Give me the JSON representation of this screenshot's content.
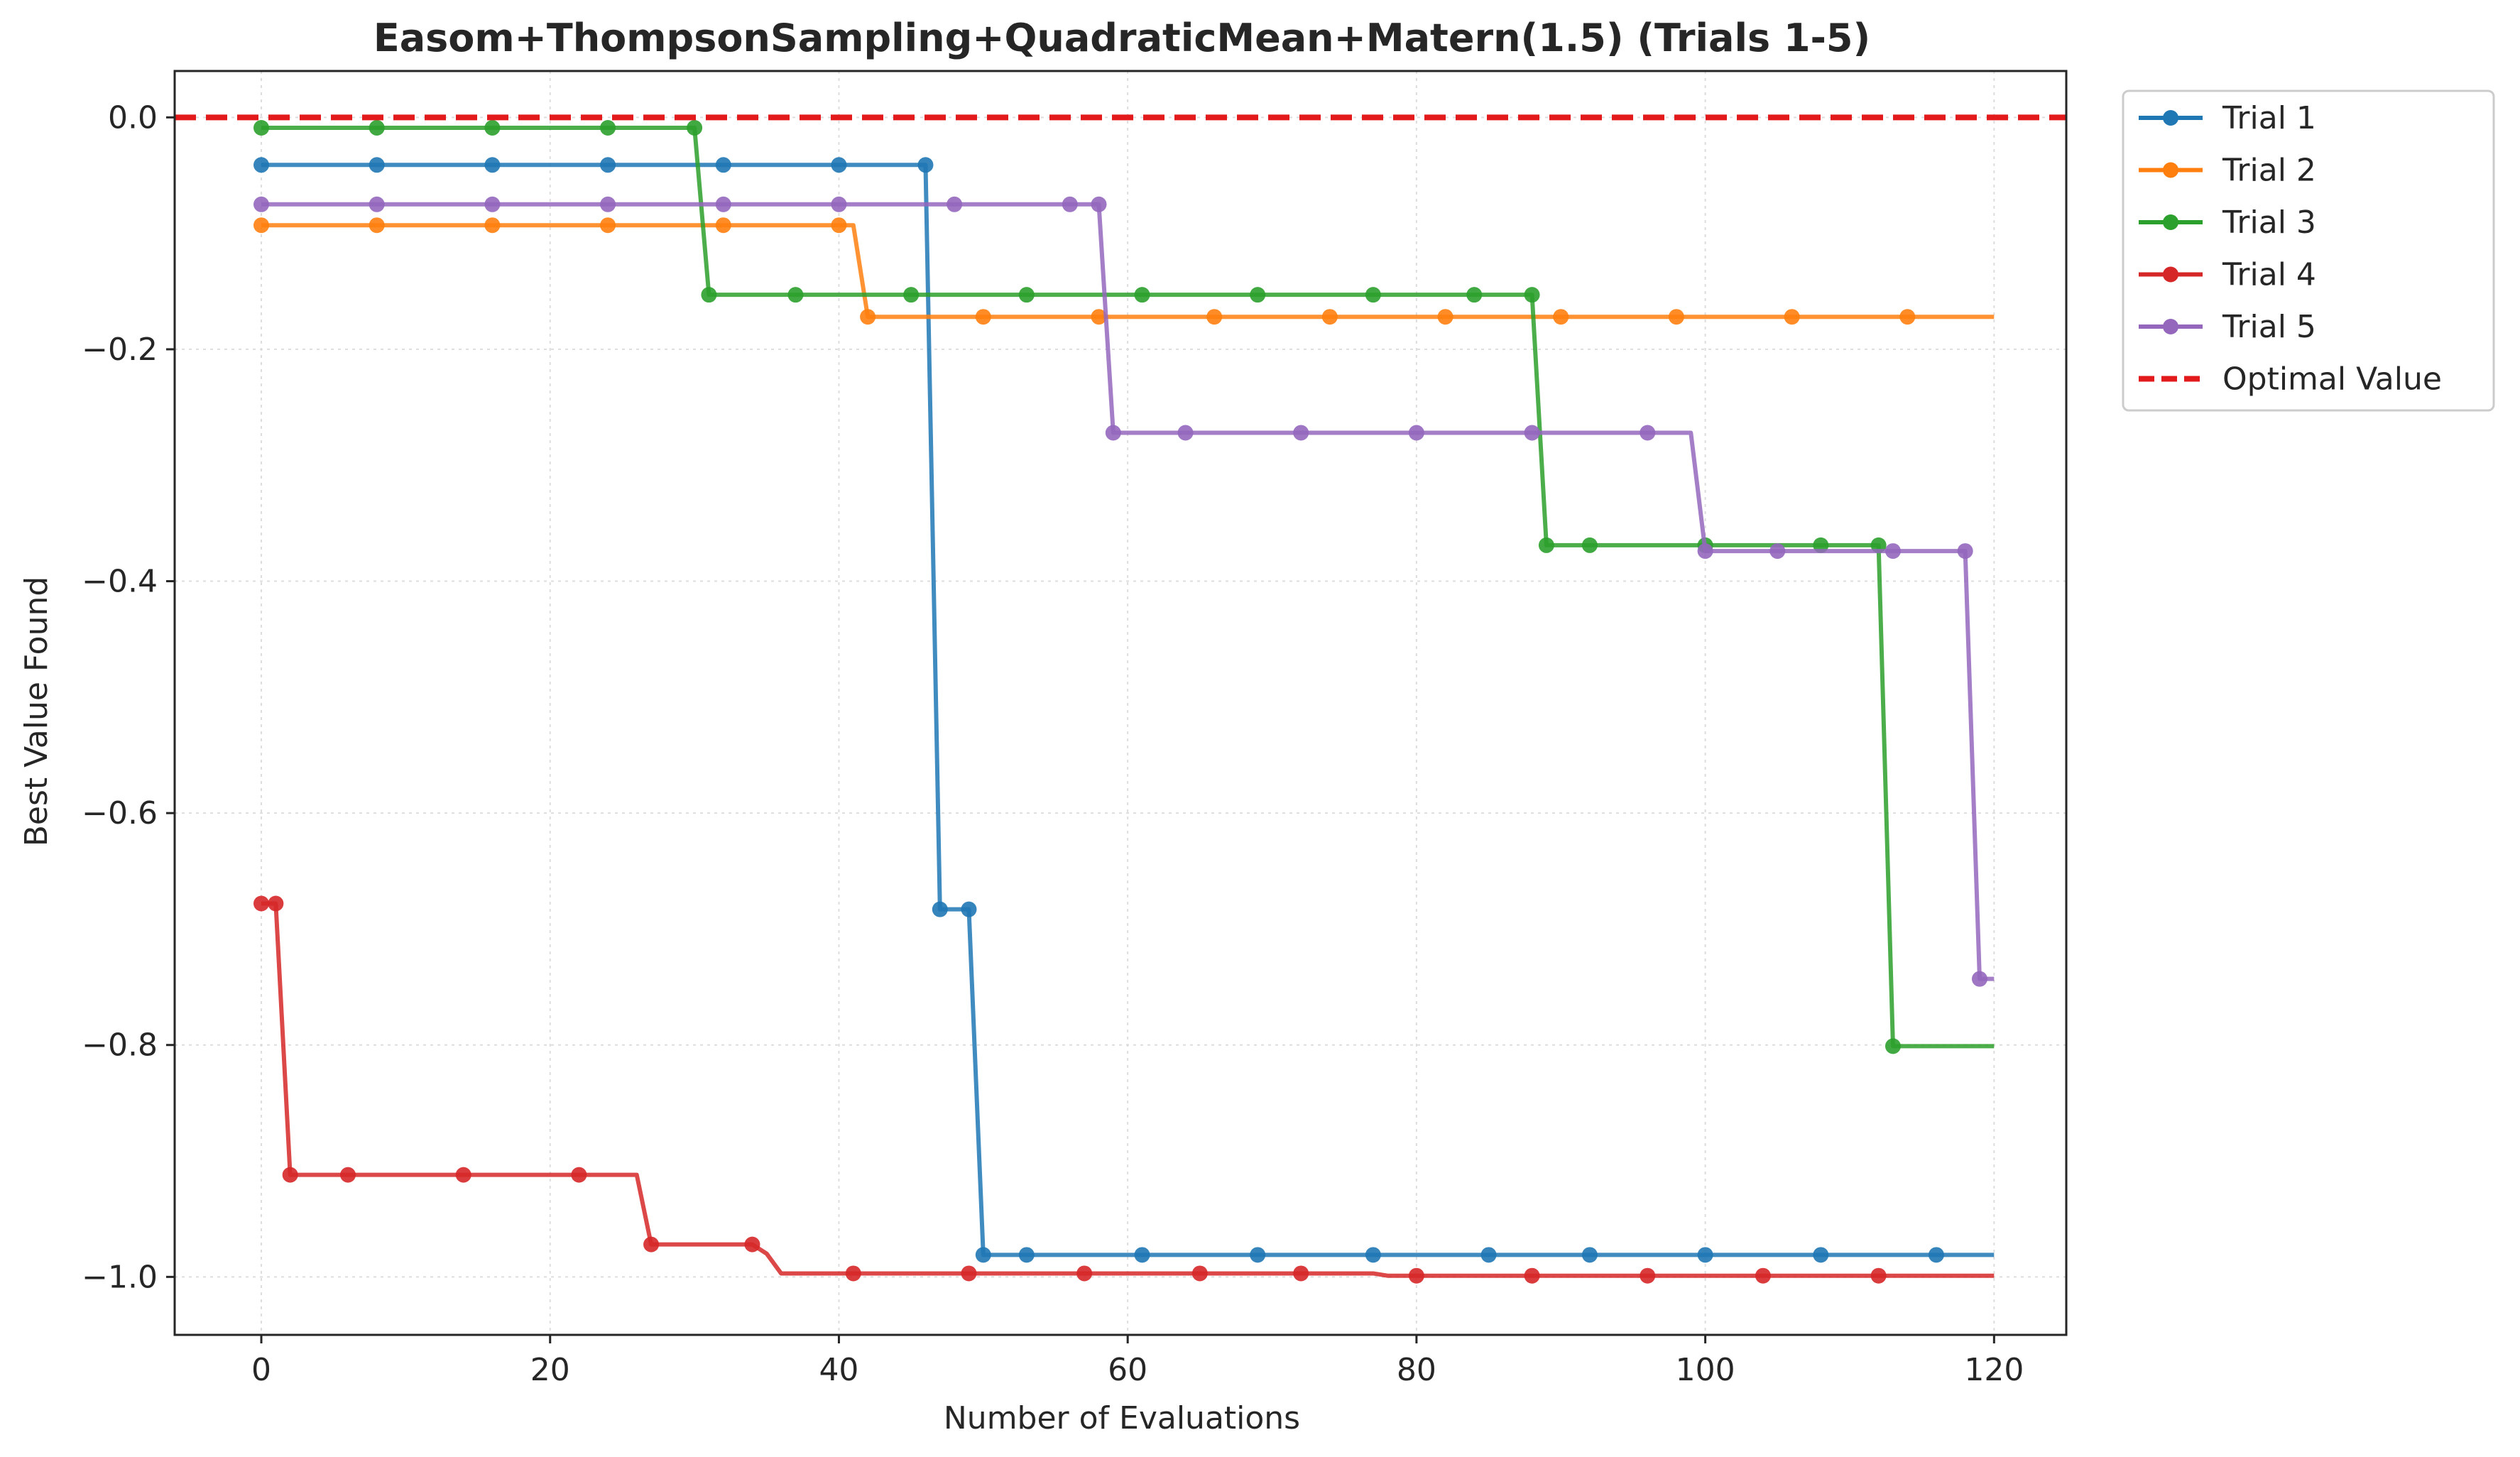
{
  "chart_data": {
    "type": "line",
    "title": "Easom+ThompsonSampling+QuadraticMean+Matern(1.5) (Trials 1-5)",
    "xlabel": "Number of Evaluations",
    "ylabel": "Best Value Found",
    "xlim": [
      -6,
      125
    ],
    "ylim": [
      -1.05,
      0.04
    ],
    "xticks": [
      0,
      20,
      40,
      60,
      80,
      100,
      120
    ],
    "yticks": [
      0.0,
      -0.2,
      -0.4,
      -0.6,
      -0.8,
      -1.0
    ],
    "xtick_labels": [
      "0",
      "20",
      "40",
      "60",
      "80",
      "100",
      "120"
    ],
    "ytick_labels": [
      "0.0",
      "−0.2",
      "−0.4",
      "−0.6",
      "−0.8",
      "−1.0"
    ],
    "grid": true,
    "legend_position": "outside-top-right",
    "optimal_value": {
      "name": "Optimal Value",
      "y": 0.0,
      "color": "#e31a1c"
    },
    "series": [
      {
        "name": "Trial 1",
        "color": "#1f77b4",
        "line": [
          [
            0,
            -0.041
          ],
          [
            46,
            -0.041
          ],
          [
            47,
            -0.683
          ],
          [
            49,
            -0.683
          ],
          [
            50,
            -0.981
          ],
          [
            120,
            -0.981
          ]
        ],
        "markers": [
          [
            0,
            -0.041
          ],
          [
            8,
            -0.041
          ],
          [
            16,
            -0.041
          ],
          [
            24,
            -0.041
          ],
          [
            32,
            -0.041
          ],
          [
            40,
            -0.041
          ],
          [
            46,
            -0.041
          ],
          [
            47,
            -0.683
          ],
          [
            49,
            -0.683
          ],
          [
            50,
            -0.981
          ],
          [
            53,
            -0.981
          ],
          [
            61,
            -0.981
          ],
          [
            69,
            -0.981
          ],
          [
            77,
            -0.981
          ],
          [
            85,
            -0.981
          ],
          [
            92,
            -0.981
          ],
          [
            100,
            -0.981
          ],
          [
            108,
            -0.981
          ],
          [
            116,
            -0.981
          ]
        ]
      },
      {
        "name": "Trial 2",
        "color": "#ff7f0e",
        "line": [
          [
            0,
            -0.093
          ],
          [
            41,
            -0.093
          ],
          [
            42,
            -0.172
          ],
          [
            120,
            -0.172
          ]
        ],
        "markers": [
          [
            0,
            -0.093
          ],
          [
            8,
            -0.093
          ],
          [
            16,
            -0.093
          ],
          [
            24,
            -0.093
          ],
          [
            32,
            -0.093
          ],
          [
            40,
            -0.093
          ],
          [
            42,
            -0.172
          ],
          [
            50,
            -0.172
          ],
          [
            58,
            -0.172
          ],
          [
            66,
            -0.172
          ],
          [
            74,
            -0.172
          ],
          [
            82,
            -0.172
          ],
          [
            90,
            -0.172
          ],
          [
            98,
            -0.172
          ],
          [
            106,
            -0.172
          ],
          [
            114,
            -0.172
          ]
        ]
      },
      {
        "name": "Trial 3",
        "color": "#2ca02c",
        "line": [
          [
            0,
            -0.009
          ],
          [
            30,
            -0.009
          ],
          [
            31,
            -0.153
          ],
          [
            88,
            -0.153
          ],
          [
            89,
            -0.369
          ],
          [
            112,
            -0.369
          ],
          [
            113,
            -0.801
          ],
          [
            120,
            -0.801
          ]
        ],
        "markers": [
          [
            0,
            -0.009
          ],
          [
            8,
            -0.009
          ],
          [
            16,
            -0.009
          ],
          [
            24,
            -0.009
          ],
          [
            30,
            -0.009
          ],
          [
            31,
            -0.153
          ],
          [
            37,
            -0.153
          ],
          [
            45,
            -0.153
          ],
          [
            53,
            -0.153
          ],
          [
            61,
            -0.153
          ],
          [
            69,
            -0.153
          ],
          [
            77,
            -0.153
          ],
          [
            84,
            -0.153
          ],
          [
            88,
            -0.153
          ],
          [
            89,
            -0.369
          ],
          [
            92,
            -0.369
          ],
          [
            100,
            -0.369
          ],
          [
            108,
            -0.369
          ],
          [
            112,
            -0.369
          ],
          [
            113,
            -0.801
          ]
        ]
      },
      {
        "name": "Trial 4",
        "color": "#d62728",
        "line": [
          [
            0,
            -0.678
          ],
          [
            1,
            -0.678
          ],
          [
            2,
            -0.912
          ],
          [
            26,
            -0.912
          ],
          [
            27,
            -0.972
          ],
          [
            34,
            -0.972
          ],
          [
            35,
            -0.98
          ],
          [
            36,
            -0.997
          ],
          [
            77,
            -0.997
          ],
          [
            78,
            -0.999
          ],
          [
            120,
            -0.999
          ]
        ],
        "markers": [
          [
            0,
            -0.678
          ],
          [
            1,
            -0.678
          ],
          [
            2,
            -0.912
          ],
          [
            6,
            -0.912
          ],
          [
            14,
            -0.912
          ],
          [
            22,
            -0.912
          ],
          [
            27,
            -0.972
          ],
          [
            34,
            -0.972
          ],
          [
            41,
            -0.997
          ],
          [
            49,
            -0.997
          ],
          [
            57,
            -0.997
          ],
          [
            65,
            -0.997
          ],
          [
            72,
            -0.997
          ],
          [
            80,
            -0.999
          ],
          [
            88,
            -0.999
          ],
          [
            96,
            -0.999
          ],
          [
            104,
            -0.999
          ],
          [
            112,
            -0.999
          ]
        ]
      },
      {
        "name": "Trial 5",
        "color": "#9467bd",
        "line": [
          [
            0,
            -0.075
          ],
          [
            58,
            -0.075
          ],
          [
            59,
            -0.272
          ],
          [
            99,
            -0.272
          ],
          [
            100,
            -0.374
          ],
          [
            118,
            -0.374
          ],
          [
            119,
            -0.743
          ],
          [
            120,
            -0.743
          ]
        ],
        "markers": [
          [
            0,
            -0.075
          ],
          [
            8,
            -0.075
          ],
          [
            16,
            -0.075
          ],
          [
            24,
            -0.075
          ],
          [
            32,
            -0.075
          ],
          [
            40,
            -0.075
          ],
          [
            48,
            -0.075
          ],
          [
            56,
            -0.075
          ],
          [
            58,
            -0.075
          ],
          [
            59,
            -0.272
          ],
          [
            64,
            -0.272
          ],
          [
            72,
            -0.272
          ],
          [
            80,
            -0.272
          ],
          [
            88,
            -0.272
          ],
          [
            96,
            -0.272
          ],
          [
            100,
            -0.374
          ],
          [
            105,
            -0.374
          ],
          [
            113,
            -0.374
          ],
          [
            118,
            -0.374
          ],
          [
            119,
            -0.743
          ]
        ]
      }
    ]
  }
}
